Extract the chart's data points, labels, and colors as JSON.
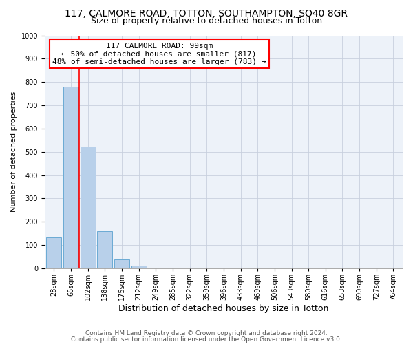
{
  "title1": "117, CALMORE ROAD, TOTTON, SOUTHAMPTON, SO40 8GR",
  "title2": "Size of property relative to detached houses in Totton",
  "xlabel": "Distribution of detached houses by size in Totton",
  "ylabel": "Number of detached properties",
  "bar_labels": [
    "28sqm",
    "65sqm",
    "102sqm",
    "138sqm",
    "175sqm",
    "212sqm",
    "249sqm",
    "285sqm",
    "322sqm",
    "359sqm",
    "396sqm",
    "433sqm",
    "469sqm",
    "506sqm",
    "543sqm",
    "580sqm",
    "616sqm",
    "653sqm",
    "690sqm",
    "727sqm",
    "764sqm"
  ],
  "bar_values": [
    133,
    779,
    524,
    159,
    37,
    13,
    0,
    0,
    0,
    0,
    0,
    0,
    0,
    0,
    0,
    0,
    0,
    0,
    0,
    0,
    0
  ],
  "bar_color": "#b8d0ea",
  "bar_edge_color": "#6aaad4",
  "vline_color": "red",
  "annotation_line1": "117 CALMORE ROAD: 99sqm",
  "annotation_line2": "← 50% of detached houses are smaller (817)",
  "annotation_line3": "48% of semi-detached houses are larger (783) →",
  "annotation_box_color": "white",
  "annotation_box_edge": "red",
  "ylim": [
    0,
    1000
  ],
  "yticks": [
    0,
    100,
    200,
    300,
    400,
    500,
    600,
    700,
    800,
    900,
    1000
  ],
  "footer1": "Contains HM Land Registry data © Crown copyright and database right 2024.",
  "footer2": "Contains public sector information licensed under the Open Government Licence v3.0.",
  "bg_color": "#edf2f9",
  "grid_color": "#c8d0de",
  "title1_fontsize": 10,
  "title2_fontsize": 9,
  "xlabel_fontsize": 9,
  "ylabel_fontsize": 8,
  "tick_fontsize": 7,
  "annot_fontsize": 8,
  "footer_fontsize": 6.5
}
